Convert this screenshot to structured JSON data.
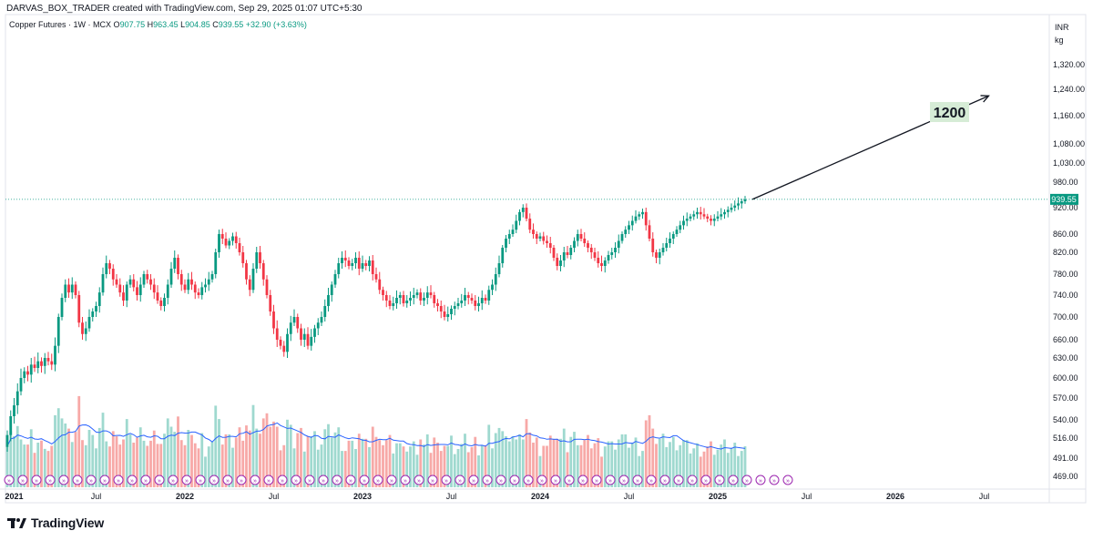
{
  "header": {
    "attribution": "DARVAS_BOX_TRADER created with TradingView.com, Sep 29, 2025 01:07 UTC+5:30"
  },
  "legend": {
    "symbol": "Copper Futures · 1W · MCX",
    "open_label": "O",
    "open": "907.75",
    "high_label": "H",
    "high": "963.45",
    "low_label": "L",
    "low": "904.85",
    "close_label": "C",
    "close": "939.55",
    "change": "+32.90 (+3.63%)"
  },
  "brand": {
    "name": "TradingView",
    "logo_icon": "tradingview-logo-icon"
  },
  "chart_data": {
    "type": "candlestick",
    "timeframe": "1W",
    "currency": "INR",
    "unit": "kg",
    "price_axis_labels": [
      1320,
      1240,
      1160,
      1080,
      1030,
      980,
      920,
      860,
      820,
      780,
      740,
      700,
      660,
      630,
      600,
      570,
      540,
      516,
      491,
      469
    ],
    "price_axis_text": [
      "1,320.00",
      "1,240.00",
      "1,160.00",
      "1,080.00",
      "1,030.00",
      "980.00",
      "920.00",
      "860.00",
      "820.00",
      "780.00",
      "740.00",
      "700.00",
      "660.00",
      "630.00",
      "600.00",
      "570.00",
      "540.00",
      "516.00",
      "491.00",
      "469.00"
    ],
    "time_axis_labels": [
      "2021",
      "Jul",
      "2022",
      "Jul",
      "2023",
      "Jul",
      "2024",
      "Jul",
      "2025",
      "Jul",
      "2026",
      "Jul"
    ],
    "time_axis_weeks": [
      2,
      26,
      52,
      78,
      104,
      130,
      156,
      182,
      208,
      234,
      260,
      286
    ],
    "last_price": 939.55,
    "last_price_text": "939.55",
    "target_annotation": "1200",
    "target_price": 1220,
    "target_week": 286,
    "closes": [
      520,
      545,
      560,
      580,
      600,
      610,
      605,
      620,
      615,
      625,
      618,
      630,
      625,
      620,
      650,
      700,
      735,
      760,
      745,
      760,
      740,
      690,
      670,
      680,
      700,
      710,
      720,
      745,
      780,
      800,
      790,
      770,
      760,
      745,
      730,
      760,
      770,
      755,
      740,
      760,
      780,
      770,
      760,
      745,
      730,
      720,
      735,
      760,
      790,
      810,
      780,
      760,
      750,
      770,
      760,
      745,
      740,
      755,
      760,
      770,
      780,
      820,
      860,
      850,
      835,
      845,
      855,
      840,
      820,
      800,
      770,
      750,
      790,
      820,
      800,
      770,
      740,
      710,
      680,
      660,
      650,
      640,
      670,
      690,
      700,
      680,
      660,
      670,
      650,
      665,
      680,
      690,
      700,
      720,
      740,
      760,
      780,
      800,
      810,
      805,
      795,
      800,
      810,
      790,
      800,
      795,
      805,
      780,
      770,
      750,
      740,
      730,
      720,
      725,
      735,
      740,
      725,
      730,
      735,
      740,
      745,
      730,
      735,
      745,
      740,
      725,
      720,
      710,
      700,
      705,
      715,
      720,
      725,
      730,
      740,
      735,
      730,
      720,
      725,
      735,
      730,
      750,
      760,
      780,
      800,
      830,
      850,
      860,
      870,
      890,
      910,
      920,
      895,
      870,
      860,
      850,
      855,
      845,
      840,
      830,
      810,
      795,
      805,
      820,
      815,
      830,
      845,
      860,
      850,
      840,
      830,
      820,
      810,
      800,
      795,
      805,
      815,
      820,
      830,
      845,
      860,
      870,
      880,
      890,
      900,
      905,
      910,
      880,
      850,
      820,
      810,
      820,
      830,
      840,
      850,
      860,
      870,
      880,
      890,
      895,
      900,
      905,
      910,
      905,
      900,
      895,
      890,
      895,
      900,
      905,
      910,
      915,
      920,
      925,
      930,
      935,
      939.55
    ],
    "volume_baseline": 469,
    "volume_top": 620
  }
}
